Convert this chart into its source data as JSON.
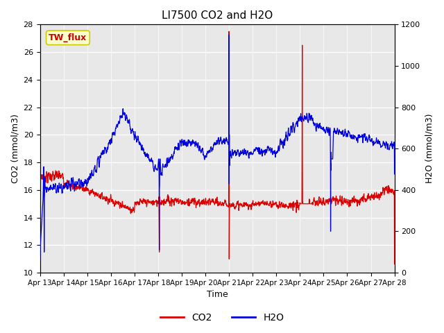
{
  "title": "LI7500 CO2 and H2O",
  "xlabel": "Time",
  "ylabel_left": "CO2 (mmol/m3)",
  "ylabel_right": "H2O (mmol/m3)",
  "annotation_text": "TW_flux",
  "annotation_bg": "#ffffcc",
  "annotation_edge": "#cccc00",
  "annotation_text_color": "#cc0000",
  "co2_color": "#dd0000",
  "h2o_color": "#0000dd",
  "plot_bg_color": "#e8e8e8",
  "ylim_left": [
    10,
    28
  ],
  "ylim_right": [
    0,
    1200
  ],
  "yticks_left": [
    10,
    12,
    14,
    16,
    18,
    20,
    22,
    24,
    26,
    28
  ],
  "yticks_right": [
    0,
    200,
    400,
    600,
    800,
    1000,
    1200
  ],
  "xtick_labels": [
    "Apr 13",
    "Apr 14",
    "Apr 15",
    "Apr 16",
    "Apr 17",
    "Apr 18",
    "Apr 19",
    "Apr 20",
    "Apr 21",
    "Apr 22",
    "Apr 23",
    "Apr 24",
    "Apr 25",
    "Apr 26",
    "Apr 27",
    "Apr 28"
  ],
  "legend_co2_label": "CO2",
  "legend_h2o_label": "H2O"
}
